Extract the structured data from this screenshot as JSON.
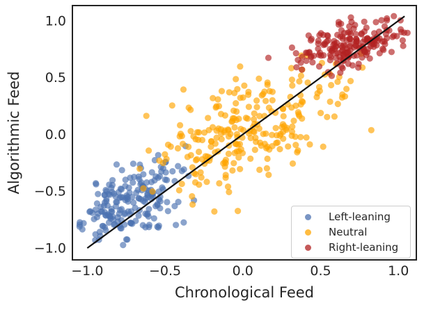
{
  "chart_data": {
    "type": "scatter",
    "title": "",
    "xlabel": "Chronological Feed",
    "ylabel": "Algorithmic Feed",
    "xlim": [
      -1.1,
      1.12
    ],
    "ylim": [
      -1.11,
      1.14
    ],
    "xticks": [
      -1.0,
      -0.5,
      0.0,
      0.5,
      1.0
    ],
    "yticks": [
      1.0,
      0.5,
      0.0,
      -0.5,
      -1.0
    ],
    "grid": false,
    "spine_color": "#222222",
    "tick_label_color": "#262626",
    "identity_line": {
      "from": [
        -1.0,
        -1.0
      ],
      "to": [
        1.04,
        1.04
      ],
      "color": "#111111",
      "width": 2.2
    },
    "marker": {
      "radius": 4.6,
      "opacity": 0.65
    },
    "series": [
      {
        "name": "Left-leaning",
        "color": "#4c72b0",
        "n": 200,
        "center": [
          -0.73,
          -0.58
        ],
        "sd": [
          0.155,
          0.165
        ],
        "corr": 0.35,
        "xrange": [
          -1.06,
          -0.18
        ],
        "yrange": [
          -1.05,
          -0.08
        ],
        "seed": 11
      },
      {
        "name": "Neutral",
        "color": "#ffa500",
        "n": 260,
        "center": [
          0.04,
          0.07
        ],
        "sd": [
          0.3,
          0.27
        ],
        "corr": 0.5,
        "xrange": [
          -0.74,
          0.97
        ],
        "yrange": [
          -0.72,
          0.72
        ],
        "seed": 42
      },
      {
        "name": "Right-leaning",
        "color": "#b22222",
        "n": 190,
        "center": [
          0.7,
          0.8
        ],
        "sd": [
          0.17,
          0.115
        ],
        "corr": 0.45,
        "xrange": [
          0.08,
          1.07
        ],
        "yrange": [
          0.38,
          1.05
        ],
        "seed": 7
      }
    ],
    "legend": {
      "position": "lower right",
      "entries": [
        "Left-leaning",
        "Neutral",
        "Right-leaning"
      ]
    }
  }
}
